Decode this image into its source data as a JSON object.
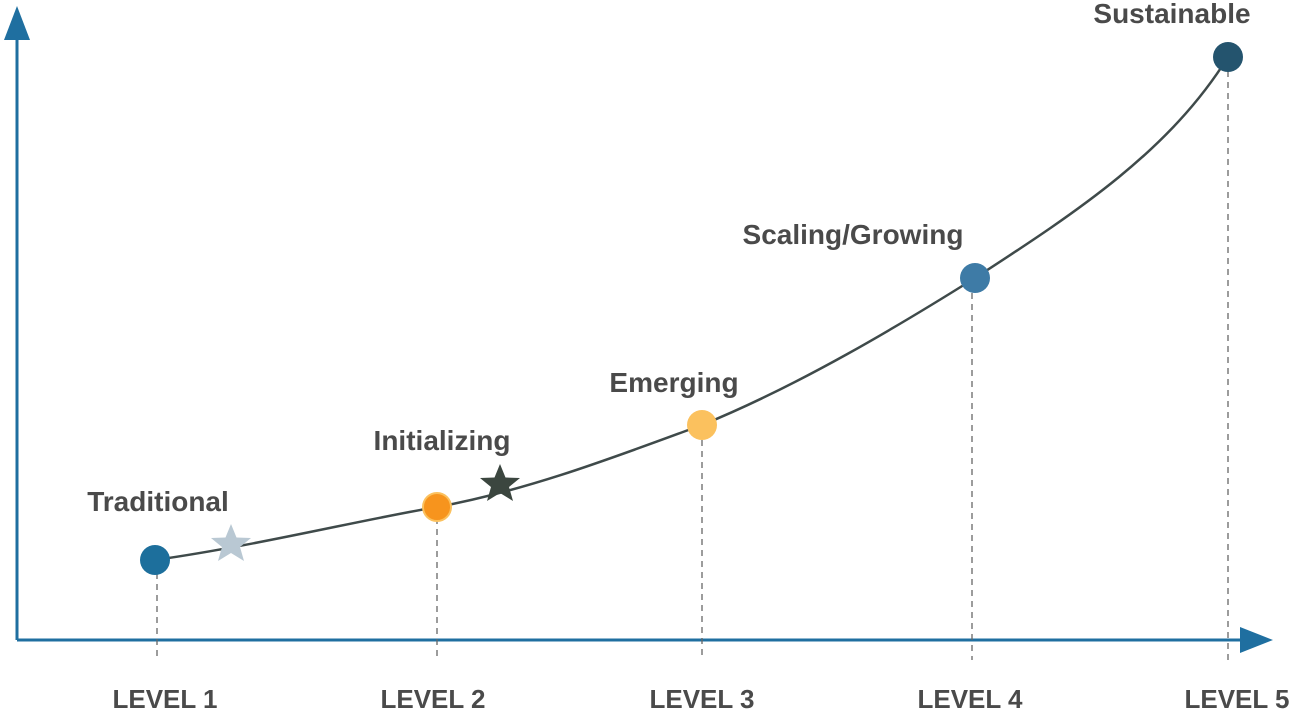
{
  "diagram": {
    "levels": [
      {
        "level_label": "LEVEL 1",
        "stage_label": "Traditional",
        "color": "#1d6f9c"
      },
      {
        "level_label": "LEVEL 2",
        "stage_label": "Initializing",
        "color": "#f7941d"
      },
      {
        "level_label": "LEVEL 3",
        "stage_label": "Emerging",
        "color": "#fbc15e"
      },
      {
        "level_label": "LEVEL 4",
        "stage_label": "Scaling/Growing",
        "color": "#3e7ba6"
      },
      {
        "level_label": "LEVEL 5",
        "stage_label": "Sustainable",
        "color": "#24546e"
      }
    ],
    "stars": [
      {
        "icon": "star-light-icon",
        "color": "#b9c8d3"
      },
      {
        "icon": "star-dark-icon",
        "color": "#3b463f"
      }
    ],
    "colors": {
      "axis": "#1f6fa0",
      "curve": "#3f4a4a",
      "guide": "#666666",
      "text": "#4a4a4a"
    }
  }
}
